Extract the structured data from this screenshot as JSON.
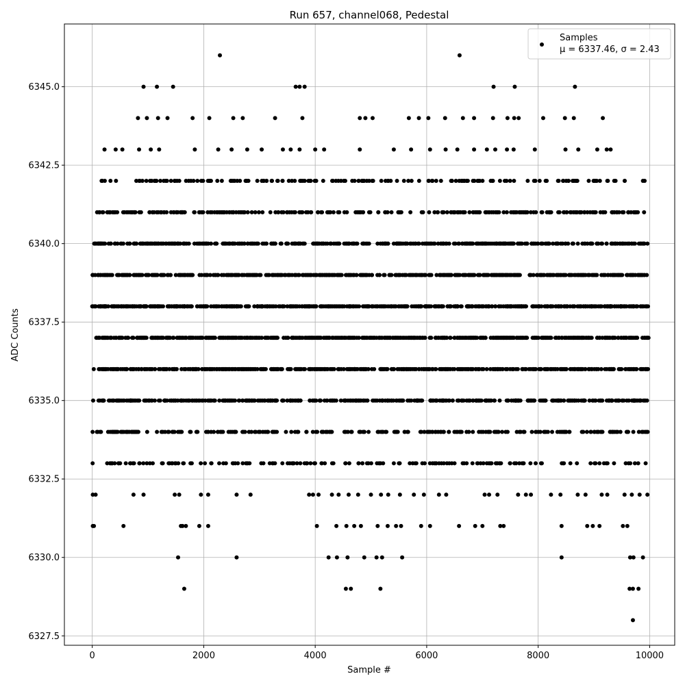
{
  "chart_data": {
    "type": "scatter",
    "title": "Run 657, channel068, Pedestal",
    "xlabel": "Sample #",
    "ylabel": "ADC Counts",
    "xlim": [
      -500,
      10450
    ],
    "ylim": [
      6327.2,
      6347.0
    ],
    "xticks": [
      0,
      2000,
      4000,
      6000,
      8000,
      10000
    ],
    "xtick_labels": [
      "0",
      "2000",
      "4000",
      "6000",
      "8000",
      "10000"
    ],
    "yticks": [
      6327.5,
      6330.0,
      6332.5,
      6335.0,
      6337.5,
      6340.0,
      6342.5,
      6345.0
    ],
    "ytick_labels": [
      "6327.5",
      "6330.0",
      "6332.5",
      "6335.0",
      "6337.5",
      "6340.0",
      "6342.5",
      "6345.0"
    ],
    "grid": true,
    "legend_position": "top-right",
    "marker_color": "#000000",
    "series": [
      {
        "name": "Samples",
        "stats_label": "μ = 6337.46, σ = 2.43",
        "mu": 6337.46,
        "sigma": 2.43,
        "x": [
          2290,
          6590,
          920,
          1160,
          1450,
          3650,
          3720,
          3810,
          7200,
          7580,
          8660,
          820,
          980,
          1180,
          1350,
          1800,
          2100,
          2530,
          2700,
          3280,
          3770,
          4800,
          4900,
          5030,
          5680,
          5860,
          6030,
          6330,
          6650,
          6850,
          7190,
          7450,
          7570,
          7650,
          8090,
          8480,
          8640,
          9160,
          220,
          420,
          540,
          840,
          1050,
          1200,
          1840,
          2260,
          2500,
          2780,
          3040,
          3420,
          3560,
          3720,
          4000,
          4160,
          4800,
          5410,
          5720,
          6060,
          6340,
          6550,
          6850,
          7080,
          7230,
          7440,
          7560,
          7940,
          8490,
          8720,
          9060,
          9230,
          9300,
          9910,
          9690,
          9910,
          9830,
          9620,
          9630,
          9680,
          9720,
          9760,
          9930,
          9940,
          9900,
          9880,
          1540,
          2590,
          4240,
          4390,
          4580,
          4880,
          5100,
          5200,
          5560,
          8420,
          9650,
          9710,
          9880,
          1650,
          4550,
          4640,
          5170,
          9640,
          9700,
          9800,
          9700,
          10,
          30,
          560,
          1590,
          1620,
          1680,
          1920,
          2080,
          4030,
          4380,
          4560,
          4700,
          4820,
          5120,
          5300,
          5450,
          5540,
          5900,
          6060,
          6580,
          6870,
          7000,
          7320,
          7380,
          8420,
          8880,
          8980,
          9100,
          9520,
          9600,
          10,
          60,
          740,
          920,
          1480,
          1560,
          1950,
          2080,
          2590,
          2840,
          3890,
          3960,
          4060,
          4300,
          4420,
          4600,
          4770,
          5000,
          5180,
          5310,
          5520,
          5770,
          5950,
          6220,
          6350,
          7040,
          7120,
          7270,
          7640,
          7780,
          7870,
          8230,
          8400,
          8710,
          8850,
          9140,
          9240,
          9550,
          9680,
          9820,
          9960
        ]
      }
    ],
    "dense_rows": [
      {
        "y": 6333.0,
        "x_start": 0,
        "x_end": 9980,
        "n": 165,
        "seed": 11
      },
      {
        "y": 6334.0,
        "x_start": 0,
        "x_end": 9980,
        "n": 260,
        "seed": 23
      },
      {
        "y": 6335.0,
        "x_start": 0,
        "x_end": 9980,
        "n": 430,
        "seed": 37
      },
      {
        "y": 6336.0,
        "x_start": 0,
        "x_end": 9980,
        "n": 520,
        "seed": 41
      },
      {
        "y": 6337.0,
        "x_start": 0,
        "x_end": 9980,
        "n": 620,
        "seed": 53
      },
      {
        "y": 6338.0,
        "x_start": 0,
        "x_end": 9980,
        "n": 590,
        "seed": 67
      },
      {
        "y": 6339.0,
        "x_start": 0,
        "x_end": 9980,
        "n": 520,
        "seed": 71
      },
      {
        "y": 6340.0,
        "x_start": 0,
        "x_end": 9980,
        "n": 430,
        "seed": 83
      },
      {
        "y": 6341.0,
        "x_start": 0,
        "x_end": 9800,
        "n": 280,
        "seed": 97
      },
      {
        "y": 6342.0,
        "x_start": 150,
        "x_end": 9600,
        "n": 170,
        "seed": 101
      }
    ]
  }
}
